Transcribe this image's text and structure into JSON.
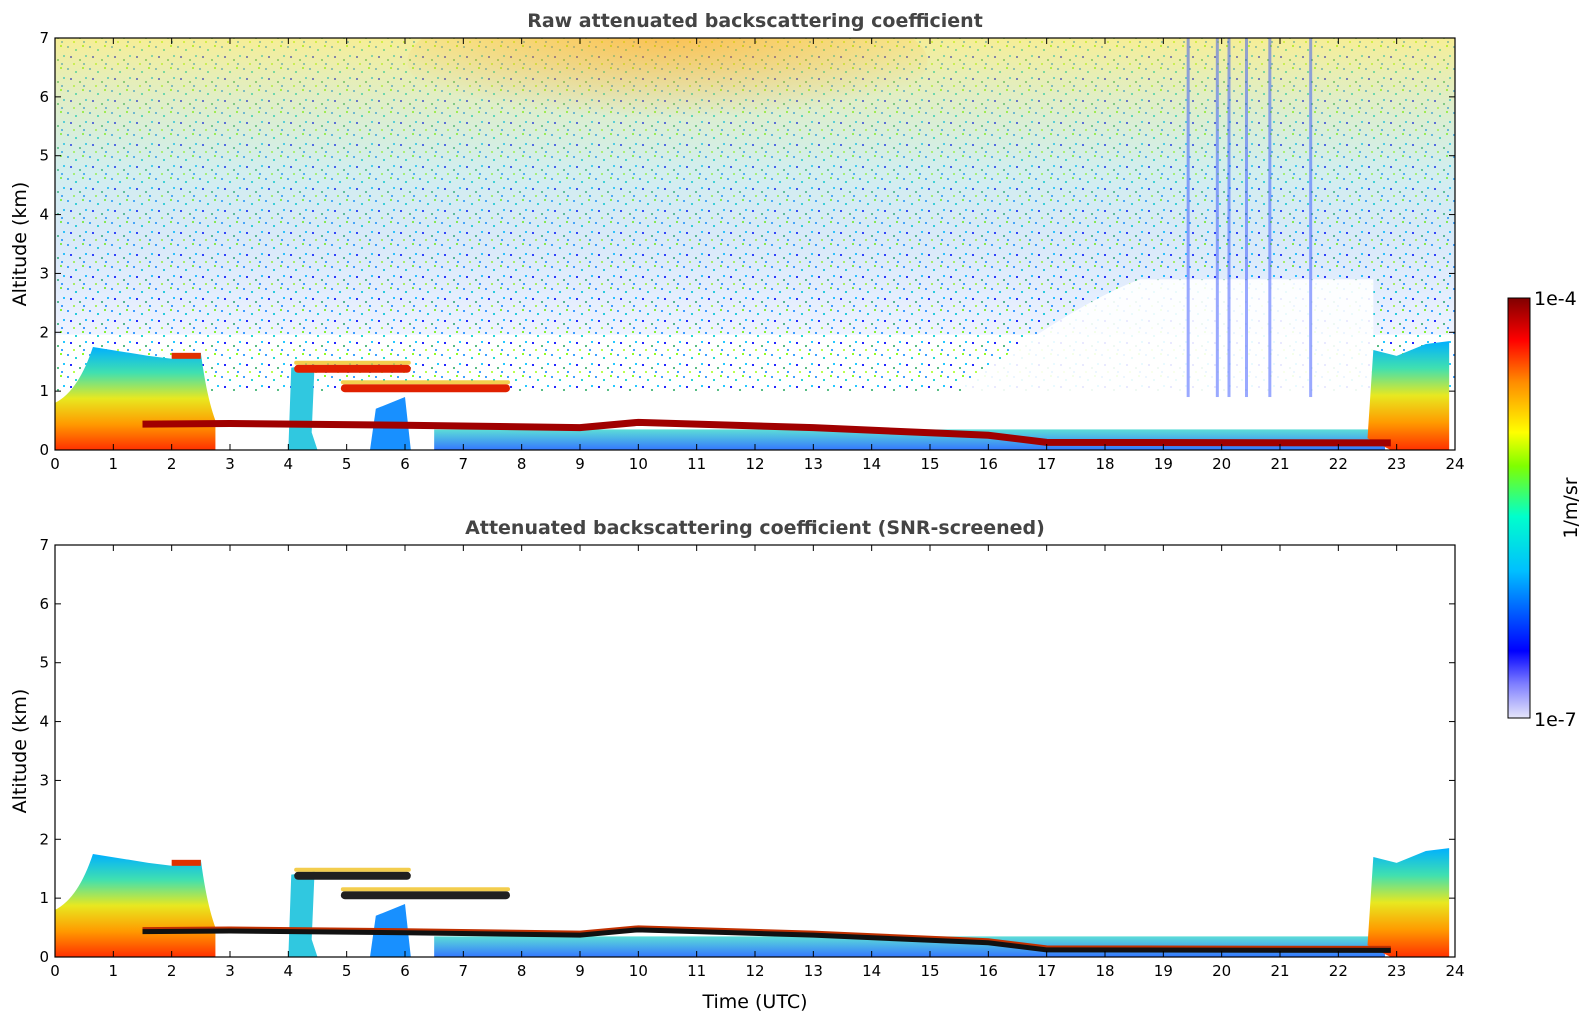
{
  "chart_data": [
    {
      "type": "heatmap",
      "title": "Raw attenuated backscattering coefficient",
      "xlabel": "",
      "ylabel": "Altitude (km)",
      "xlim": [
        0,
        24
      ],
      "ylim": [
        0,
        7
      ],
      "xticks": [
        0,
        1,
        2,
        3,
        4,
        5,
        6,
        7,
        8,
        9,
        10,
        11,
        12,
        13,
        14,
        15,
        16,
        17,
        18,
        19,
        20,
        21,
        22,
        23,
        24
      ],
      "yticks": [
        0,
        1,
        2,
        3,
        4,
        5,
        6,
        7
      ],
      "color_scale": "log",
      "clim": [
        "1e-7",
        "1e-4"
      ],
      "features": {
        "boundary_layer_aerosol": [
          {
            "t_start": 0.0,
            "t_end": 2.6,
            "top_km": 1.7
          },
          {
            "t_start": 4.0,
            "t_end": 4.4,
            "top_km": 1.5
          },
          {
            "t_start": 5.4,
            "t_end": 6.1,
            "top_km": 0.9
          },
          {
            "t_start": 22.5,
            "t_end": 23.9,
            "top_km": 1.8
          }
        ],
        "layer_tops": [
          {
            "t": 1.5,
            "alt_km": 0.44
          },
          {
            "t": 3.0,
            "alt_km": 0.45
          },
          {
            "t": 6.0,
            "alt_km": 0.42
          },
          {
            "t": 9.0,
            "alt_km": 0.38
          },
          {
            "t": 10.0,
            "alt_km": 0.47
          },
          {
            "t": 13.0,
            "alt_km": 0.38
          },
          {
            "t": 16.0,
            "alt_km": 0.25
          },
          {
            "t": 17.0,
            "alt_km": 0.13
          },
          {
            "t": 22.9,
            "alt_km": 0.12
          }
        ],
        "elevated_layers": [
          {
            "t_start": 4.1,
            "t_end": 6.1,
            "alt_km": 1.38
          },
          {
            "t_start": 4.9,
            "t_end": 7.8,
            "alt_km": 1.05
          }
        ]
      }
    },
    {
      "type": "heatmap",
      "title": "Attenuated backscattering coefficient (SNR-screened)",
      "xlabel": "Time (UTC)",
      "ylabel": "Altitude (km)",
      "xlim": [
        0,
        24
      ],
      "ylim": [
        0,
        7
      ],
      "xticks": [
        0,
        1,
        2,
        3,
        4,
        5,
        6,
        7,
        8,
        9,
        10,
        11,
        12,
        13,
        14,
        15,
        16,
        17,
        18,
        19,
        20,
        21,
        22,
        23,
        24
      ],
      "yticks": [
        0,
        1,
        2,
        3,
        4,
        5,
        6,
        7
      ],
      "color_scale": "log",
      "clim": [
        "1e-7",
        "1e-4"
      ]
    }
  ],
  "colorbar": {
    "label": "1/m/sr",
    "max_label": "1e-4",
    "min_label": "1e-7",
    "colormap": [
      "#e6e6fa",
      "#0000ff",
      "#00bfff",
      "#00ffcc",
      "#7fff00",
      "#ffff00",
      "#ff8c00",
      "#ff0000",
      "#800000"
    ]
  }
}
